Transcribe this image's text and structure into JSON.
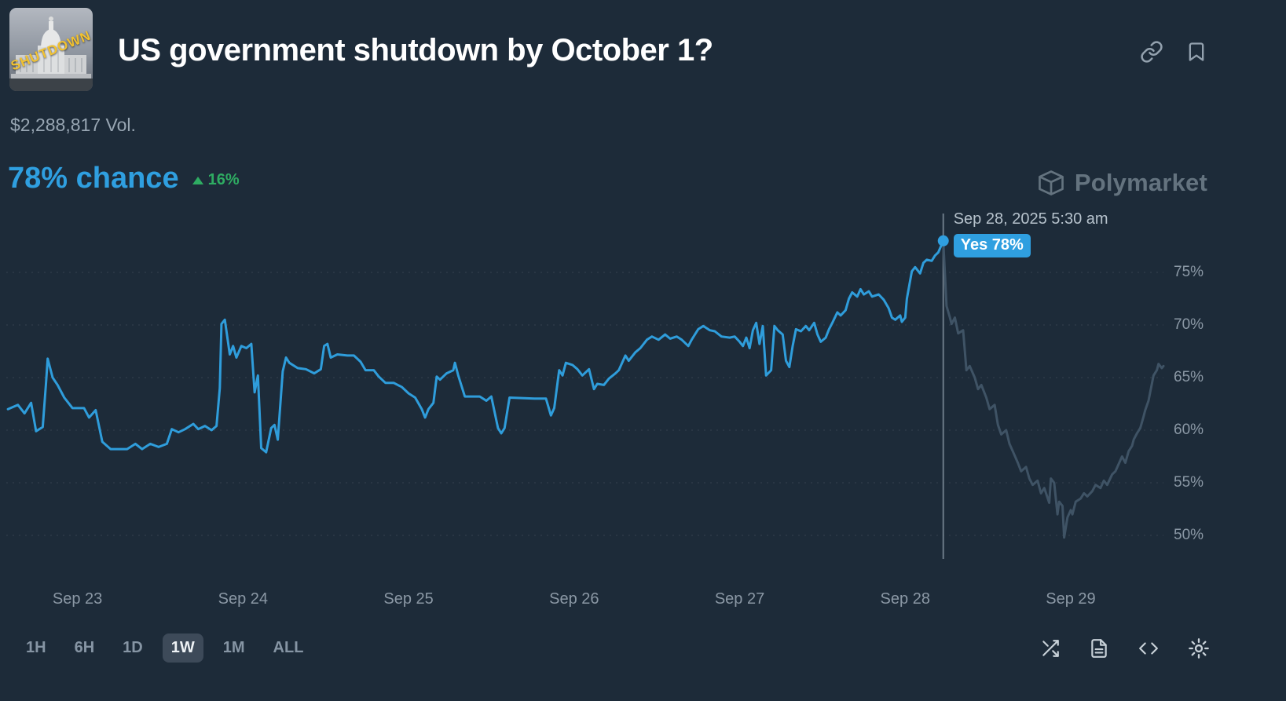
{
  "header": {
    "title": "US government shutdown by October 1?",
    "thumbnail_text": "SHUTDOWN"
  },
  "stats": {
    "volume": "$2,288,817 Vol.",
    "chance": "78% chance",
    "change": "16%",
    "change_direction": "up"
  },
  "watermark": {
    "label": "Polymarket"
  },
  "tooltip": {
    "timestamp": "Sep 28, 2025 5:30 am",
    "outcome_label": "Yes 78%"
  },
  "time_range_buttons": {
    "options": [
      "1H",
      "6H",
      "1D",
      "1W",
      "1M",
      "ALL"
    ],
    "selected": "1W"
  },
  "icons": {
    "header": [
      "copy-link-icon",
      "bookmark-icon"
    ],
    "watermark": "polymarket-logo-icon",
    "delta": "up-triangle-icon",
    "footer": [
      "shuffle-icon",
      "document-icon",
      "embed-code-icon",
      "settings-gear-icon"
    ]
  },
  "colors": {
    "background": "#1d2b39",
    "accent": "#2f9fe0",
    "line_active": "#2f9ddb",
    "line_after_hover": "#3f5365",
    "positive": "#2eac62",
    "gridline": "#35424f",
    "hover_line": "#6b7a87",
    "axis_text": "#8b98a5",
    "title_text": "#ffffff",
    "muted_text": "#98a6b3"
  },
  "chart_data": {
    "type": "line",
    "title": "Yes price, 1W view",
    "xlabel": "",
    "ylabel": "",
    "grid": "horizontal-dotted",
    "legend": "none",
    "x_axis": {
      "tick_labels": [
        "Sep 23",
        "Sep 24",
        "Sep 25",
        "Sep 26",
        "Sep 27",
        "Sep 28",
        "Sep 29"
      ],
      "tick_positions_days": [
        0,
        1,
        2,
        3,
        4,
        5,
        6
      ],
      "range_days": [
        -0.43,
        6.56
      ]
    },
    "y_axis": {
      "tick_labels": [
        "50%",
        "55%",
        "60%",
        "65%",
        "70%",
        "75%"
      ],
      "tick_values": [
        50,
        55,
        60,
        65,
        70,
        75
      ],
      "range": [
        47,
        80
      ]
    },
    "hover_point": {
      "x_days": 5.23,
      "value": 78
    },
    "series": [
      {
        "name": "Yes (up to hovered time)",
        "color": "#2f9ddb",
        "points": [
          [
            -0.42,
            62
          ],
          [
            -0.36,
            62.4
          ],
          [
            -0.32,
            61.6
          ],
          [
            -0.28,
            62.6
          ],
          [
            -0.25,
            59.9
          ],
          [
            -0.21,
            60.3
          ],
          [
            -0.19,
            64.5
          ],
          [
            -0.18,
            66.8
          ],
          [
            -0.15,
            65
          ],
          [
            -0.12,
            64.3
          ],
          [
            -0.08,
            63.1
          ],
          [
            -0.03,
            62.1
          ],
          [
            0.04,
            62.1
          ],
          [
            0.07,
            61.2
          ],
          [
            0.11,
            61.9
          ],
          [
            0.15,
            58.9
          ],
          [
            0.2,
            58.2
          ],
          [
            0.3,
            58.2
          ],
          [
            0.35,
            58.7
          ],
          [
            0.39,
            58.2
          ],
          [
            0.44,
            58.7
          ],
          [
            0.49,
            58.4
          ],
          [
            0.54,
            58.7
          ],
          [
            0.57,
            60.1
          ],
          [
            0.61,
            59.8
          ],
          [
            0.65,
            60.1
          ],
          [
            0.7,
            60.6
          ],
          [
            0.73,
            60.1
          ],
          [
            0.77,
            60.4
          ],
          [
            0.81,
            60
          ],
          [
            0.84,
            60.4
          ],
          [
            0.86,
            64
          ],
          [
            0.87,
            70.1
          ],
          [
            0.89,
            70.5
          ],
          [
            0.92,
            67.2
          ],
          [
            0.94,
            68
          ],
          [
            0.96,
            66.9
          ],
          [
            0.99,
            68
          ],
          [
            1.02,
            67.8
          ],
          [
            1.05,
            68.2
          ],
          [
            1.07,
            63.6
          ],
          [
            1.09,
            65.2
          ],
          [
            1.11,
            58.3
          ],
          [
            1.14,
            57.9
          ],
          [
            1.17,
            60.2
          ],
          [
            1.19,
            60.5
          ],
          [
            1.21,
            59.1
          ],
          [
            1.24,
            65.6
          ],
          [
            1.26,
            66.9
          ],
          [
            1.28,
            66.4
          ],
          [
            1.33,
            65.9
          ],
          [
            1.38,
            65.8
          ],
          [
            1.43,
            65.4
          ],
          [
            1.47,
            65.8
          ],
          [
            1.49,
            68
          ],
          [
            1.51,
            68.2
          ],
          [
            1.53,
            66.9
          ],
          [
            1.57,
            67.2
          ],
          [
            1.63,
            67.1
          ],
          [
            1.67,
            67.1
          ],
          [
            1.71,
            66.5
          ],
          [
            1.74,
            65.7
          ],
          [
            1.79,
            65.7
          ],
          [
            1.82,
            65.1
          ],
          [
            1.86,
            64.5
          ],
          [
            1.91,
            64.5
          ],
          [
            1.96,
            64.1
          ],
          [
            2,
            63.5
          ],
          [
            2.04,
            63.1
          ],
          [
            2.08,
            62
          ],
          [
            2.1,
            61.2
          ],
          [
            2.12,
            62
          ],
          [
            2.15,
            62.6
          ],
          [
            2.17,
            65.1
          ],
          [
            2.19,
            64.8
          ],
          [
            2.23,
            65.4
          ],
          [
            2.27,
            65.7
          ],
          [
            2.28,
            66.4
          ],
          [
            2.3,
            65.2
          ],
          [
            2.34,
            63.2
          ],
          [
            2.43,
            63.2
          ],
          [
            2.47,
            62.8
          ],
          [
            2.5,
            63.2
          ],
          [
            2.54,
            60.2
          ],
          [
            2.56,
            59.7
          ],
          [
            2.58,
            60.2
          ],
          [
            2.61,
            63.1
          ],
          [
            2.76,
            63
          ],
          [
            2.83,
            63
          ],
          [
            2.86,
            61.4
          ],
          [
            2.88,
            62.1
          ],
          [
            2.91,
            65.7
          ],
          [
            2.93,
            65.2
          ],
          [
            2.95,
            66.4
          ],
          [
            2.99,
            66.2
          ],
          [
            3.02,
            65.8
          ],
          [
            3.05,
            65.2
          ],
          [
            3.09,
            65.8
          ],
          [
            3.12,
            63.9
          ],
          [
            3.14,
            64.4
          ],
          [
            3.18,
            64.3
          ],
          [
            3.21,
            64.9
          ],
          [
            3.25,
            65.4
          ],
          [
            3.27,
            65.7
          ],
          [
            3.31,
            67.1
          ],
          [
            3.33,
            66.6
          ],
          [
            3.37,
            67.4
          ],
          [
            3.4,
            67.8
          ],
          [
            3.44,
            68.6
          ],
          [
            3.47,
            68.9
          ],
          [
            3.51,
            68.6
          ],
          [
            3.55,
            69.1
          ],
          [
            3.58,
            68.7
          ],
          [
            3.62,
            68.9
          ],
          [
            3.65,
            68.6
          ],
          [
            3.69,
            68
          ],
          [
            3.71,
            68.6
          ],
          [
            3.75,
            69.6
          ],
          [
            3.78,
            69.9
          ],
          [
            3.82,
            69.5
          ],
          [
            3.85,
            69.4
          ],
          [
            3.89,
            68.9
          ],
          [
            3.94,
            68.8
          ],
          [
            3.97,
            68.9
          ],
          [
            4,
            68.4
          ],
          [
            4.02,
            68
          ],
          [
            4.04,
            68.8
          ],
          [
            4.06,
            67.8
          ],
          [
            4.08,
            69.5
          ],
          [
            4.1,
            70.2
          ],
          [
            4.12,
            68.2
          ],
          [
            4.14,
            69.9
          ],
          [
            4.16,
            65.2
          ],
          [
            4.19,
            65.7
          ],
          [
            4.21,
            69.9
          ],
          [
            4.23,
            69.5
          ],
          [
            4.26,
            69.1
          ],
          [
            4.28,
            66.6
          ],
          [
            4.3,
            66
          ],
          [
            4.32,
            68
          ],
          [
            4.34,
            69.6
          ],
          [
            4.37,
            69.4
          ],
          [
            4.4,
            69.9
          ],
          [
            4.42,
            69.5
          ],
          [
            4.45,
            70.2
          ],
          [
            4.47,
            69.1
          ],
          [
            4.49,
            68.4
          ],
          [
            4.52,
            68.8
          ],
          [
            4.54,
            69.6
          ],
          [
            4.56,
            70.2
          ],
          [
            4.59,
            71.2
          ],
          [
            4.61,
            70.9
          ],
          [
            4.64,
            71.4
          ],
          [
            4.66,
            72.5
          ],
          [
            4.68,
            73.1
          ],
          [
            4.71,
            72.7
          ],
          [
            4.73,
            73.4
          ],
          [
            4.75,
            72.9
          ],
          [
            4.78,
            73.2
          ],
          [
            4.8,
            72.7
          ],
          [
            4.84,
            72.9
          ],
          [
            4.87,
            72.4
          ],
          [
            4.9,
            71.6
          ],
          [
            4.92,
            70.7
          ],
          [
            4.94,
            70.5
          ],
          [
            4.97,
            70.9
          ],
          [
            4.98,
            70.3
          ],
          [
            5,
            70.7
          ],
          [
            5.01,
            72.5
          ],
          [
            5.04,
            75.1
          ],
          [
            5.06,
            75.5
          ],
          [
            5.09,
            74.9
          ],
          [
            5.11,
            75.9
          ],
          [
            5.13,
            76.2
          ],
          [
            5.16,
            76.1
          ],
          [
            5.18,
            76.6
          ],
          [
            5.2,
            76.9
          ],
          [
            5.23,
            78
          ]
        ]
      },
      {
        "name": "Yes (after hovered time, dimmed)",
        "color": "#3f5365",
        "points": [
          [
            5.23,
            78
          ],
          [
            5.25,
            71.8
          ],
          [
            5.27,
            70.7
          ],
          [
            5.28,
            70.1
          ],
          [
            5.3,
            70.7
          ],
          [
            5.32,
            69.2
          ],
          [
            5.35,
            69.5
          ],
          [
            5.37,
            65.7
          ],
          [
            5.39,
            66.1
          ],
          [
            5.42,
            65
          ],
          [
            5.44,
            63.9
          ],
          [
            5.46,
            64.3
          ],
          [
            5.49,
            63.1
          ],
          [
            5.51,
            62
          ],
          [
            5.54,
            62.4
          ],
          [
            5.56,
            60.5
          ],
          [
            5.58,
            59.6
          ],
          [
            5.61,
            60
          ],
          [
            5.63,
            58.7
          ],
          [
            5.65,
            58
          ],
          [
            5.68,
            56.9
          ],
          [
            5.7,
            56.1
          ],
          [
            5.73,
            56.5
          ],
          [
            5.75,
            55.4
          ],
          [
            5.77,
            54.8
          ],
          [
            5.8,
            55.2
          ],
          [
            5.82,
            54
          ],
          [
            5.84,
            54.5
          ],
          [
            5.87,
            53.1
          ],
          [
            5.88,
            55.4
          ],
          [
            5.9,
            55
          ],
          [
            5.92,
            52
          ],
          [
            5.93,
            53.2
          ],
          [
            5.95,
            52.8
          ],
          [
            5.96,
            49.8
          ],
          [
            5.98,
            51.7
          ],
          [
            6,
            52.4
          ],
          [
            6.01,
            52
          ],
          [
            6.03,
            53.2
          ],
          [
            6.06,
            53.5
          ],
          [
            6.08,
            54
          ],
          [
            6.1,
            53.7
          ],
          [
            6.13,
            54.2
          ],
          [
            6.15,
            54.8
          ],
          [
            6.18,
            54.5
          ],
          [
            6.2,
            55.2
          ],
          [
            6.22,
            54.8
          ],
          [
            6.25,
            55.8
          ],
          [
            6.27,
            56.1
          ],
          [
            6.29,
            56.8
          ],
          [
            6.31,
            57.5
          ],
          [
            6.33,
            56.9
          ],
          [
            6.35,
            58
          ],
          [
            6.37,
            58.5
          ],
          [
            6.38,
            59.1
          ],
          [
            6.4,
            59.7
          ],
          [
            6.42,
            60.2
          ],
          [
            6.44,
            61.3
          ],
          [
            6.45,
            61.9
          ],
          [
            6.47,
            62.8
          ],
          [
            6.48,
            63.6
          ],
          [
            6.5,
            65.2
          ],
          [
            6.52,
            65.7
          ],
          [
            6.53,
            66.3
          ],
          [
            6.55,
            65.9
          ],
          [
            6.56,
            66.1
          ]
        ]
      }
    ]
  }
}
